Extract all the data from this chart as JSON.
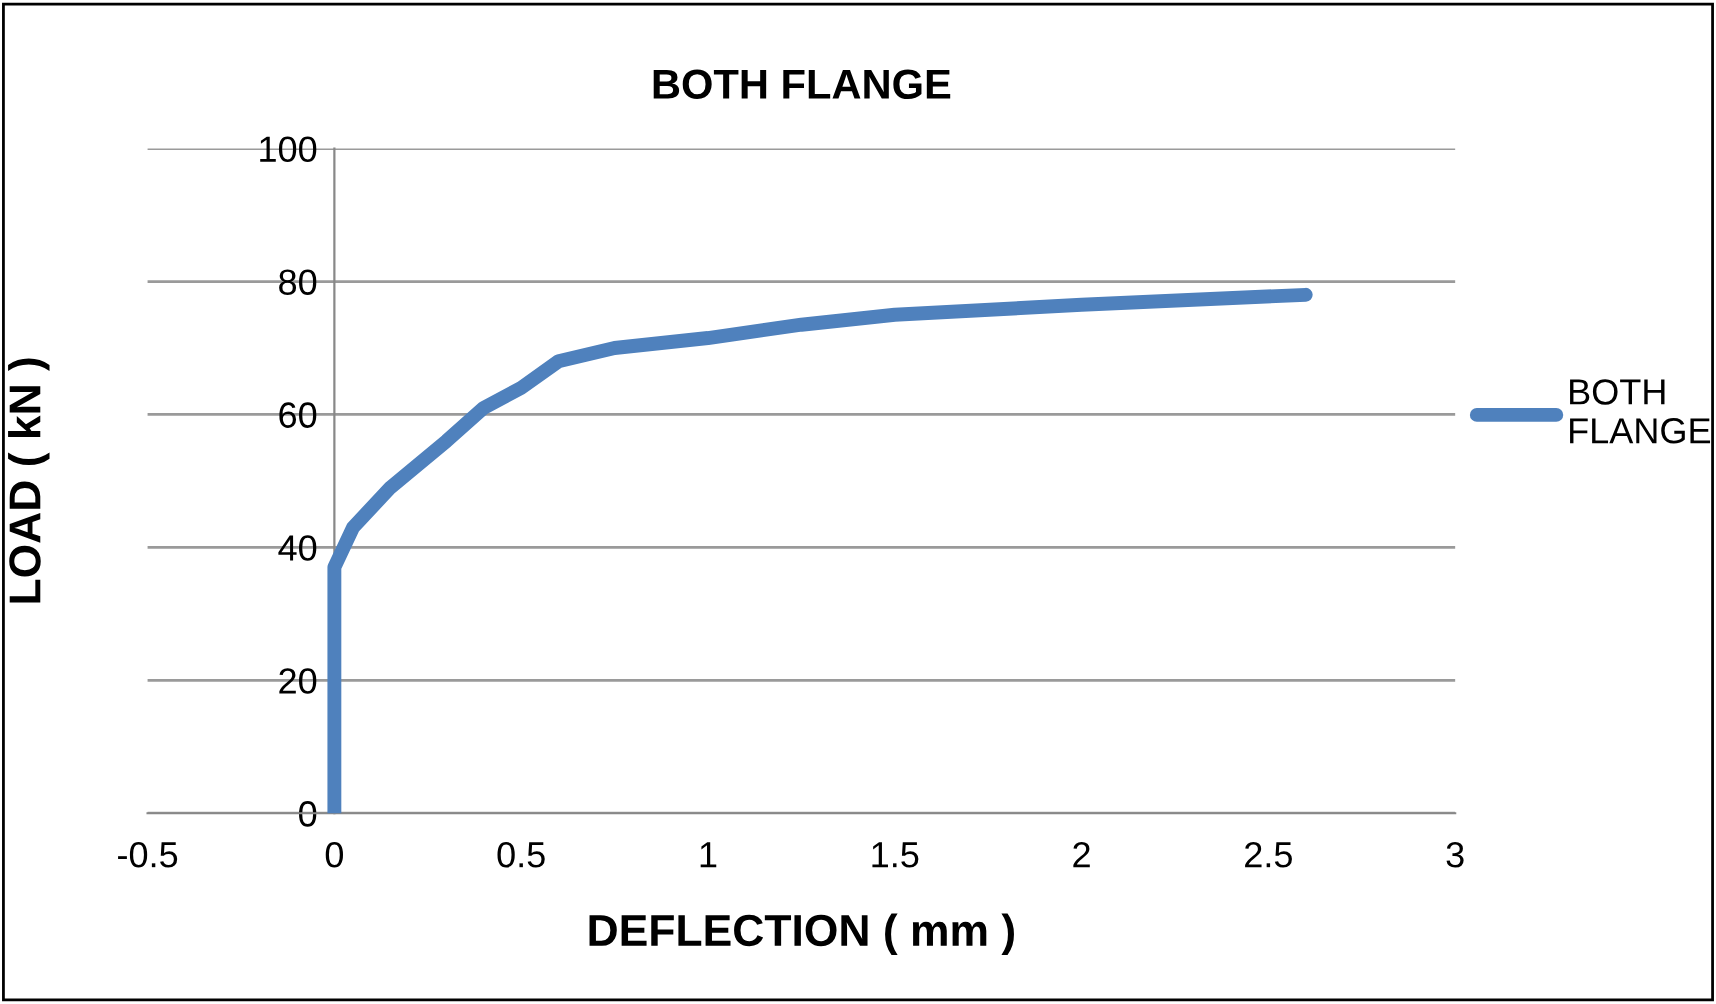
{
  "chart_data": {
    "type": "line",
    "title": "BOTH FLANGE",
    "xlabel": "DEFLECTION ( mm )",
    "ylabel": "LOAD ( kN )",
    "xlim": [
      -0.5,
      3
    ],
    "xticks": [
      -0.5,
      0,
      0.5,
      1,
      1.5,
      2,
      2.5,
      3
    ],
    "ylim": [
      0,
      100
    ],
    "yticks": [
      0,
      20,
      40,
      60,
      80,
      100
    ],
    "grid": "y",
    "legend": "right",
    "marker": "none",
    "line_style": "solid",
    "series": [
      {
        "name": "BOTH FLANGE",
        "color": "#4f81bd",
        "x": [
          0,
          0,
          0.05,
          0.15,
          0.3,
          0.4,
          0.5,
          0.6,
          0.75,
          1.0,
          1.25,
          1.5,
          2.0,
          2.6
        ],
        "values": [
          0,
          37,
          43,
          49,
          56,
          61,
          64,
          68,
          70,
          71.5,
          73.5,
          75,
          76.5,
          78
        ]
      }
    ]
  }
}
